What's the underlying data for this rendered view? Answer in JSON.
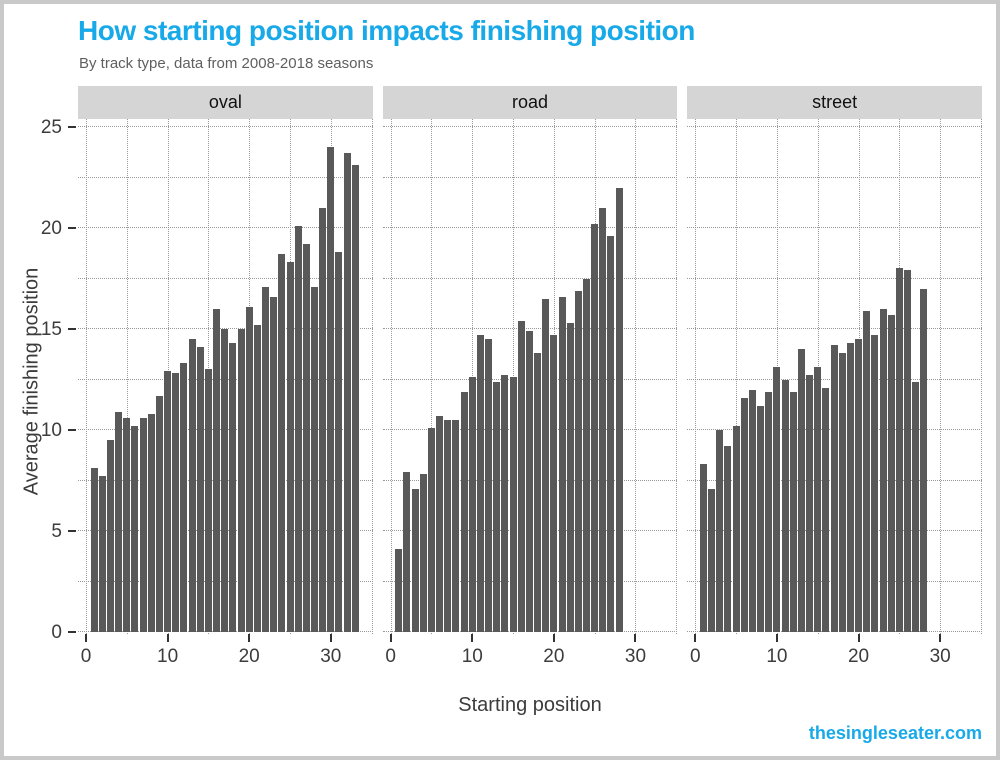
{
  "header": {
    "title": "How starting position impacts finishing position",
    "subtitle": "By track type, data from 2008-2018 seasons"
  },
  "footer": {
    "site": "thesingleseater.com"
  },
  "colors": {
    "accent": "#18a9e8",
    "bar": "#595959",
    "strip_bg": "#d5d5d5",
    "gridline": "#999999",
    "axis_text": "#3c3c3c"
  },
  "chart_data": {
    "type": "bar",
    "title": "How starting position impacts finishing position",
    "subtitle": "By track type, data from 2008-2018 seasons",
    "xlabel": "Starting position",
    "ylabel": "Average finishing position",
    "ylim": [
      0,
      25
    ],
    "x_ticks": [
      0,
      10,
      20,
      30
    ],
    "y_ticks": [
      0,
      5,
      10,
      15,
      20,
      25
    ],
    "x_minor_step": 5,
    "y_minor_step": 2.5,
    "grid": "dotted",
    "legend": "none",
    "x_start": 1,
    "facets": [
      {
        "label": "oval",
        "values": [
          8.1,
          7.7,
          9.5,
          10.9,
          10.6,
          10.2,
          10.6,
          10.8,
          11.7,
          12.9,
          12.8,
          13.3,
          14.5,
          14.1,
          13.0,
          16.0,
          15.0,
          14.3,
          15.0,
          16.1,
          15.2,
          17.1,
          16.6,
          18.7,
          18.3,
          20.1,
          19.2,
          17.1,
          21.0,
          24.0,
          18.8,
          23.7,
          23.1
        ]
      },
      {
        "label": "road",
        "values": [
          4.1,
          7.9,
          7.1,
          7.8,
          10.1,
          10.7,
          10.5,
          10.5,
          11.9,
          12.6,
          14.7,
          14.5,
          12.4,
          12.7,
          12.6,
          15.4,
          14.9,
          13.8,
          16.5,
          14.7,
          16.6,
          15.3,
          16.9,
          17.5,
          20.2,
          21.0,
          19.6,
          22.0
        ]
      },
      {
        "label": "street",
        "values": [
          8.3,
          7.1,
          10.0,
          9.2,
          10.2,
          11.6,
          12.0,
          11.2,
          11.9,
          13.1,
          12.5,
          11.9,
          14.0,
          12.7,
          13.1,
          12.1,
          14.2,
          13.8,
          14.3,
          14.5,
          15.9,
          14.7,
          16.0,
          15.7,
          18.0,
          17.9,
          12.4,
          17.0
        ]
      }
    ]
  }
}
